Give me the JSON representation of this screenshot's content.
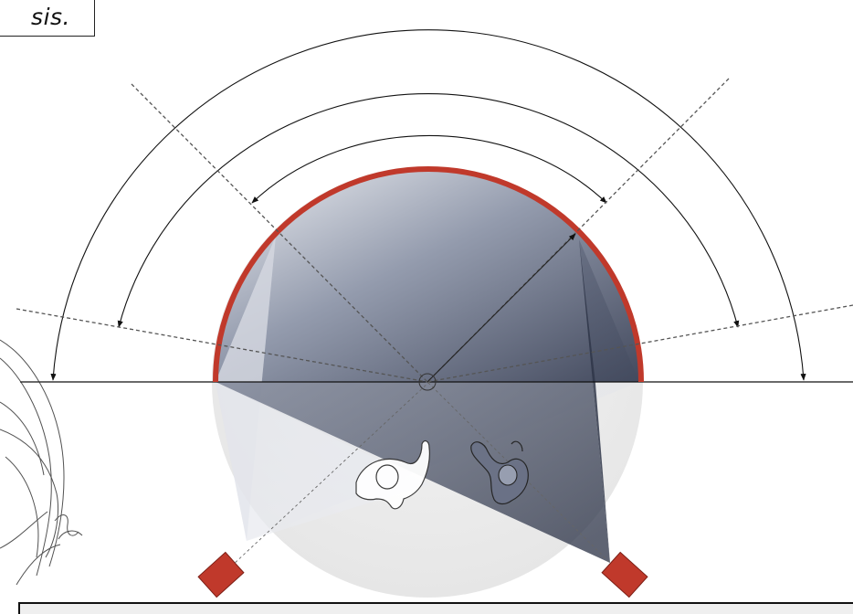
{
  "caption": {
    "text": "sis."
  },
  "colors": {
    "dome_rim": "#c0392b",
    "projector": "#c0392b",
    "projection_light": "#e4e6ec",
    "projection_dark": "#2e3448",
    "ground_circle": "#ececec",
    "line": "#111111",
    "dashed_line": "#555555",
    "panel_background": "#efefef"
  },
  "elements": {
    "arcs": [
      "outer-arc",
      "middle-arc",
      "inner-arc"
    ],
    "dashed_lines": [
      "left-diagonal",
      "right-diagonal",
      "left-shallow",
      "right-shallow"
    ],
    "projectors": [
      "left-projector",
      "right-projector"
    ],
    "figures": [
      "person-left",
      "person-right"
    ],
    "icons": [
      "center-point-icon",
      "sketch-scribble-icon"
    ]
  }
}
